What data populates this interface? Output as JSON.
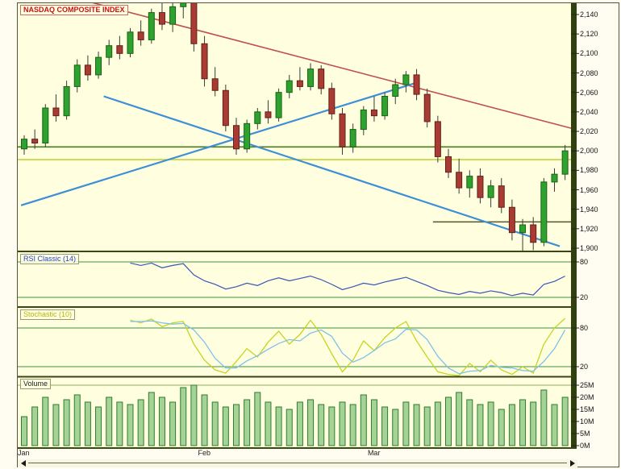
{
  "title_box": {
    "label": "NASDAQ COMPOSITE INDEX"
  },
  "price_axis": {
    "tick_labels": [
      "2,140",
      "2,120",
      "2,100",
      "2,080",
      "2,060",
      "2,040",
      "2,020",
      "2,000",
      "1,980",
      "1,960",
      "1,940",
      "1,920",
      "1,900"
    ]
  },
  "rsi_panel": {
    "label": "RSI Classic (14)",
    "tick_labels": [
      "80",
      "20"
    ]
  },
  "stochastic_panel": {
    "label": "Stochastic (10)",
    "tick_labels": [
      "80",
      "20"
    ]
  },
  "volume_panel": {
    "label": "Volume",
    "tick_labels": [
      "25M",
      "20M",
      "15M",
      "10M",
      "5M",
      "0M"
    ]
  },
  "colors": {
    "background": "#ffffe0",
    "frame_fill": "#fffdf2",
    "frame_stroke": "#55553a",
    "axis_strip": "#31400f",
    "separator": "#3a4712",
    "up_candle": "#2fa12f",
    "up_candle_border": "#156415",
    "down_candle": "#a93b32",
    "down_candle_border": "#61201a",
    "wick": "#3a3a3a",
    "guide_green": "#3f8f3f",
    "rsi_line": "#3a55b4",
    "stoch_k": "#c6d420",
    "stoch_d": "#7ec2e8",
    "volume_bar": "#4ca64c",
    "volume_bar_border": "#2e7d2e",
    "volume_guide": "#8fae53",
    "tick_text": "#111111"
  },
  "chart_data": [
    {
      "type": "candlestick",
      "title": "NASDAQ COMPOSITE INDEX",
      "ylim": [
        1895,
        2152
      ],
      "y_ticks": [
        2140,
        2120,
        2100,
        2080,
        2060,
        2040,
        2020,
        2000,
        1980,
        1960,
        1940,
        1920,
        1900
      ],
      "x_months": [
        {
          "label": "Jan",
          "index": 0
        },
        {
          "label": "Feb",
          "index": 17
        },
        {
          "label": "Mar",
          "index": 33
        }
      ],
      "ohlc": [
        [
          2002,
          2016,
          1996,
          2012
        ],
        [
          2012,
          2022,
          2002,
          2008
        ],
        [
          2008,
          2048,
          2004,
          2044
        ],
        [
          2044,
          2058,
          2030,
          2036
        ],
        [
          2036,
          2072,
          2032,
          2066
        ],
        [
          2066,
          2094,
          2060,
          2088
        ],
        [
          2088,
          2098,
          2072,
          2078
        ],
        [
          2078,
          2102,
          2074,
          2096
        ],
        [
          2096,
          2114,
          2088,
          2108
        ],
        [
          2108,
          2118,
          2094,
          2100
        ],
        [
          2100,
          2126,
          2096,
          2122
        ],
        [
          2122,
          2134,
          2108,
          2114
        ],
        [
          2114,
          2146,
          2110,
          2142
        ],
        [
          2142,
          2158,
          2124,
          2130
        ],
        [
          2130,
          2154,
          2122,
          2148
        ],
        [
          2148,
          2162,
          2136,
          2156
        ],
        [
          2156,
          2160,
          2102,
          2110
        ],
        [
          2110,
          2118,
          2066,
          2074
        ],
        [
          2074,
          2086,
          2056,
          2062
        ],
        [
          2062,
          2068,
          2020,
          2026
        ],
        [
          2026,
          2034,
          1996,
          2002
        ],
        [
          2002,
          2032,
          1998,
          2028
        ],
        [
          2028,
          2044,
          2022,
          2040
        ],
        [
          2040,
          2052,
          2028,
          2034
        ],
        [
          2034,
          2064,
          2030,
          2060
        ],
        [
          2060,
          2078,
          2054,
          2072
        ],
        [
          2072,
          2086,
          2062,
          2066
        ],
        [
          2066,
          2090,
          2062,
          2084
        ],
        [
          2084,
          2088,
          2058,
          2064
        ],
        [
          2064,
          2070,
          2032,
          2038
        ],
        [
          2038,
          2044,
          1996,
          2004
        ],
        [
          2004,
          2028,
          1998,
          2022
        ],
        [
          2022,
          2046,
          2016,
          2042
        ],
        [
          2042,
          2056,
          2030,
          2036
        ],
        [
          2036,
          2060,
          2032,
          2056
        ],
        [
          2056,
          2074,
          2048,
          2068
        ],
        [
          2068,
          2082,
          2060,
          2078
        ],
        [
          2078,
          2084,
          2052,
          2058
        ],
        [
          2058,
          2064,
          2024,
          2030
        ],
        [
          2030,
          2036,
          1988,
          1994
        ],
        [
          1994,
          2002,
          1972,
          1978
        ],
        [
          1978,
          1992,
          1956,
          1962
        ],
        [
          1962,
          1980,
          1952,
          1974
        ],
        [
          1974,
          1982,
          1946,
          1952
        ],
        [
          1952,
          1970,
          1942,
          1964
        ],
        [
          1964,
          1972,
          1936,
          1942
        ],
        [
          1942,
          1950,
          1908,
          1916
        ],
        [
          1916,
          1930,
          1896,
          1924
        ],
        [
          1924,
          1932,
          1898,
          1906
        ],
        [
          1906,
          1972,
          1902,
          1968
        ],
        [
          1968,
          1982,
          1958,
          1976
        ],
        [
          1976,
          2006,
          1970,
          2000
        ]
      ],
      "trendlines": [
        {
          "name": "resistance-downtrend",
          "color": "#c0504d",
          "width": 1.6,
          "from": {
            "i": 3,
            "price": 2162
          },
          "to": {
            "i": 52,
            "price": 2022
          }
        },
        {
          "name": "descending-channel",
          "color": "#3f8fd6",
          "width": 2.2,
          "from": {
            "i": 7.5,
            "price": 2056
          },
          "to": {
            "i": 50.5,
            "price": 1902
          }
        },
        {
          "name": "ascending-support",
          "color": "#3f8fd6",
          "width": 2.2,
          "from": {
            "i": -0.3,
            "price": 1944
          },
          "to": {
            "i": 37,
            "price": 2070
          }
        }
      ],
      "horizontal_levels": [
        {
          "name": "level-2004",
          "price": 2004,
          "color": "#4c7a1e",
          "width": 1.6,
          "from": -0.6,
          "to": 52
        },
        {
          "name": "level-1991",
          "price": 1991,
          "color": "#b9cc1c",
          "width": 1.4,
          "from": -0.6,
          "to": 52
        },
        {
          "name": "support-1927",
          "price": 1927,
          "color": "#55552a",
          "width": 1.6,
          "from": 39,
          "to": 51.3
        }
      ]
    },
    {
      "type": "line",
      "name": "RSI Classic (14)",
      "start_index": 10,
      "ylim": [
        0,
        100
      ],
      "guides": [
        80,
        20
      ],
      "color_key": "rsi_line",
      "values": [
        78,
        74,
        78,
        70,
        74,
        77,
        58,
        48,
        42,
        34,
        38,
        44,
        40,
        48,
        53,
        48,
        52,
        56,
        50,
        42,
        33,
        38,
        44,
        41,
        46,
        50,
        54,
        47,
        40,
        32,
        28,
        25,
        30,
        27,
        31,
        28,
        23,
        27,
        24,
        42,
        47,
        56
      ]
    },
    {
      "type": "line",
      "name": "Stochastic (10)",
      "start_index": 10,
      "ylim": [
        0,
        100
      ],
      "guides": [
        80,
        20
      ],
      "series": [
        {
          "name": "%K",
          "color_key": "stoch_k",
          "values": [
            92,
            88,
            94,
            82,
            88,
            90,
            55,
            30,
            15,
            10,
            28,
            48,
            35,
            58,
            75,
            55,
            70,
            92,
            70,
            40,
            12,
            30,
            60,
            45,
            65,
            80,
            90,
            60,
            35,
            12,
            8,
            6,
            25,
            12,
            30,
            15,
            8,
            20,
            10,
            55,
            80,
            95
          ]
        },
        {
          "name": "%D",
          "color_key": "stoch_d",
          "values": [
            90,
            90,
            91,
            88,
            86,
            87,
            77,
            58,
            33,
            18,
            18,
            29,
            37,
            47,
            56,
            62,
            60,
            72,
            77,
            67,
            41,
            27,
            34,
            45,
            57,
            63,
            78,
            77,
            62,
            36,
            18,
            9,
            13,
            14,
            22,
            19,
            18,
            14,
            13,
            28,
            48,
            77
          ]
        }
      ]
    },
    {
      "type": "bar",
      "name": "Volume",
      "unit": "millions",
      "ylim": [
        0,
        26
      ],
      "guides": [
        25
      ],
      "color_key": "volume_bar",
      "values": [
        12,
        16,
        20,
        17,
        19,
        21,
        18,
        16,
        20,
        18,
        17,
        19,
        22,
        20,
        18,
        24,
        25,
        21,
        18,
        16,
        17,
        19,
        22,
        18,
        16,
        15,
        18,
        19,
        17,
        16,
        18,
        17,
        21,
        19,
        16,
        15,
        18,
        17,
        16,
        18,
        20,
        22,
        19,
        17,
        18,
        15,
        17,
        19,
        18,
        23,
        17,
        20
      ]
    }
  ]
}
